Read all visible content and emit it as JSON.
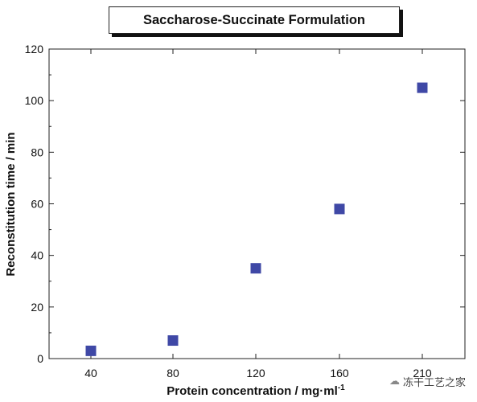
{
  "chart_data": {
    "type": "scatter",
    "title": "Saccharose-Succinate Formulation",
    "xlabel": "Protein concentration / mg·ml",
    "xlabel_sup": "-1",
    "ylabel": "Reconstitution time / min",
    "categories": [
      "40",
      "80",
      "120",
      "160",
      "210"
    ],
    "y_ticks": [
      0,
      20,
      40,
      60,
      80,
      100,
      120
    ],
    "ylim": [
      0,
      120
    ],
    "series": [
      {
        "values": [
          3,
          7,
          35,
          58,
          105
        ]
      }
    ],
    "marker_color": "#3f48a6",
    "grid": false
  },
  "watermark": {
    "text": "冻干工艺之家",
    "icon": "chat-bubble-icon"
  }
}
